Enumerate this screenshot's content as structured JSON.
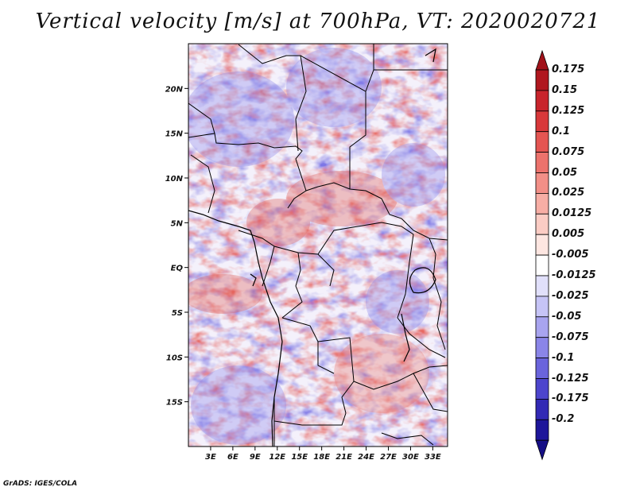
{
  "title": "Vertical velocity [m/s] at 700hPa, VT: 2020020721",
  "footer": "GrADS: IGES/COLA",
  "map": {
    "lon_range": [
      0,
      35
    ],
    "lat_range": [
      -20,
      25
    ],
    "lat_ticks": [
      {
        "value": 20,
        "label": "20N"
      },
      {
        "value": 15,
        "label": "15N"
      },
      {
        "value": 10,
        "label": "10N"
      },
      {
        "value": 5,
        "label": "5N"
      },
      {
        "value": 0,
        "label": "EQ"
      },
      {
        "value": -5,
        "label": "5S"
      },
      {
        "value": -10,
        "label": "10S"
      },
      {
        "value": -15,
        "label": "15S"
      }
    ],
    "lon_ticks": [
      {
        "value": 3,
        "label": "3E"
      },
      {
        "value": 6,
        "label": "6E"
      },
      {
        "value": 9,
        "label": "9E"
      },
      {
        "value": 12,
        "label": "12E"
      },
      {
        "value": 15,
        "label": "15E"
      },
      {
        "value": 18,
        "label": "18E"
      },
      {
        "value": 21,
        "label": "21E"
      },
      {
        "value": 24,
        "label": "24E"
      },
      {
        "value": 27,
        "label": "27E"
      },
      {
        "value": 30,
        "label": "30E"
      },
      {
        "value": 33,
        "label": "33E"
      }
    ]
  },
  "colorbar": {
    "levels": [
      {
        "label": "0.175",
        "color": "#b0171f"
      },
      {
        "label": "0.15",
        "color": "#c8242c"
      },
      {
        "label": "0.125",
        "color": "#d8383a"
      },
      {
        "label": "0.1",
        "color": "#e45552"
      },
      {
        "label": "0.075",
        "color": "#ec726c"
      },
      {
        "label": "0.05",
        "color": "#f28f87"
      },
      {
        "label": "0.025",
        "color": "#f7aea5"
      },
      {
        "label": "0.0125",
        "color": "#fbccc4"
      },
      {
        "label": "0.005",
        "color": "#fde6e1"
      },
      {
        "label": "-0.005",
        "color": "#ffffff"
      },
      {
        "label": "-0.0125",
        "color": "#e1e0fb"
      },
      {
        "label": "-0.025",
        "color": "#c6c4f6"
      },
      {
        "label": "-0.05",
        "color": "#a8a4ef"
      },
      {
        "label": "-0.075",
        "color": "#8a85e8"
      },
      {
        "label": "-0.1",
        "color": "#6a64dc"
      },
      {
        "label": "-0.125",
        "color": "#4d45cd"
      },
      {
        "label": "-0.175",
        "color": "#3229b5"
      },
      {
        "label": "-0.2",
        "color": "#1d159a"
      }
    ],
    "top_color": "#a1121a",
    "bottom_color": "#150e85"
  }
}
